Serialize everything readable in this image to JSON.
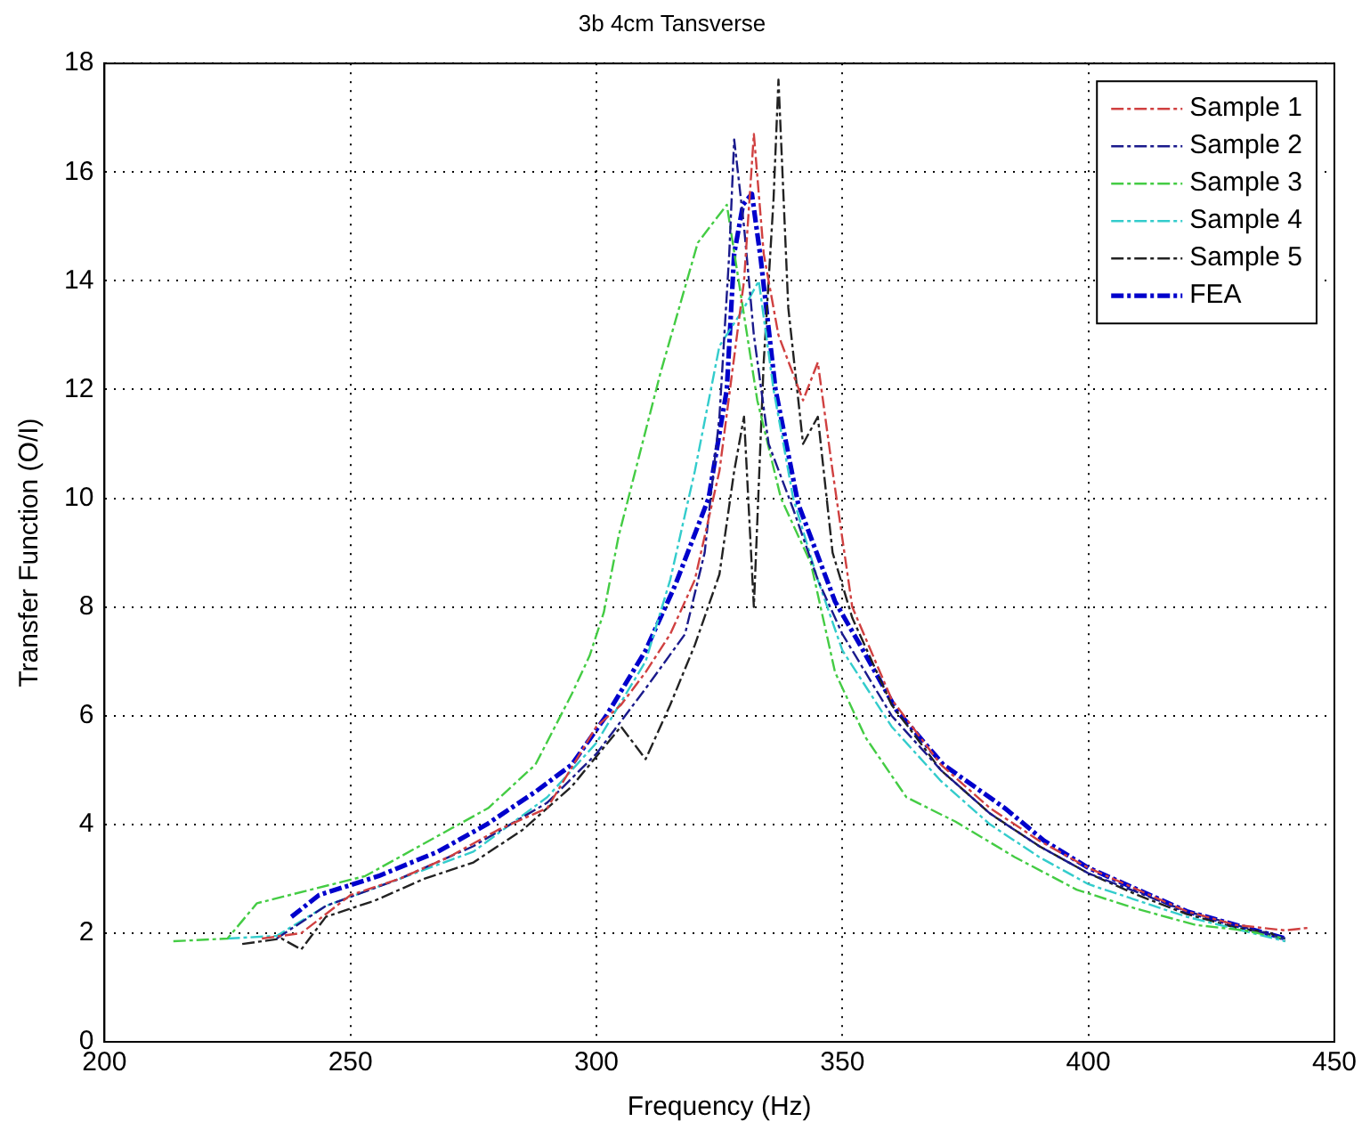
{
  "chart_data": {
    "type": "line",
    "title": "3b 4cm Tansverse",
    "xlabel": "Frequency (Hz)",
    "ylabel": "Transfer Function (O/I)",
    "xlim": [
      200,
      450
    ],
    "xticks": [
      200,
      250,
      300,
      350,
      400,
      450
    ],
    "ylim": [
      0,
      18
    ],
    "yticks": [
      0,
      2,
      4,
      6,
      8,
      10,
      12,
      14,
      16,
      18
    ],
    "grid": true,
    "legend": "top right",
    "marker": "none",
    "line_style": "dashed",
    "series": [
      {
        "name": "Sample 1",
        "color": "#d04040",
        "x": [
          232,
          240,
          250,
          260,
          270,
          280,
          290,
          300,
          305,
          310,
          315,
          320,
          325,
          330,
          332,
          334,
          337,
          342,
          345,
          348,
          352,
          360,
          370,
          380,
          390,
          400,
          410,
          420,
          430,
          440,
          445
        ],
        "values": [
          1.9,
          2.0,
          2.7,
          3.0,
          3.4,
          3.9,
          4.3,
          5.8,
          6.2,
          6.8,
          7.5,
          8.5,
          10.5,
          14.0,
          16.7,
          14.5,
          13.0,
          11.8,
          12.5,
          10.5,
          8.0,
          6.3,
          5.1,
          4.3,
          3.7,
          3.2,
          2.8,
          2.4,
          2.15,
          2.05,
          2.1
        ]
      },
      {
        "name": "Sample 2",
        "color": "#1a1a8c",
        "x": [
          235,
          245,
          260,
          275,
          290,
          300,
          310,
          318,
          322,
          325,
          327,
          328,
          330,
          332,
          335,
          340,
          345,
          350,
          360,
          370,
          380,
          390,
          400,
          420,
          440
        ],
        "values": [
          1.9,
          2.5,
          3.0,
          3.6,
          4.4,
          5.3,
          6.5,
          7.5,
          9.0,
          11.5,
          14.5,
          16.6,
          15.0,
          13.0,
          11.0,
          9.8,
          8.5,
          7.5,
          6.0,
          5.0,
          4.2,
          3.6,
          3.1,
          2.4,
          1.9
        ]
      },
      {
        "name": "Sample 3",
        "color": "#44cc44",
        "x": [
          214,
          225,
          231,
          253,
          278,
          287.6,
          295,
          298.6,
          301.5,
          304.5,
          313,
          320.6,
          326.5,
          332.7,
          337.5,
          343.6,
          348.5,
          354.7,
          363,
          373,
          385,
          397.6,
          409.7,
          421.8,
          431.7,
          440
        ],
        "values": [
          1.85,
          1.9,
          2.55,
          3.05,
          4.3,
          5.1,
          6.4,
          7.1,
          7.9,
          9.3,
          12.3,
          14.7,
          15.4,
          11.8,
          10.0,
          8.8,
          6.8,
          5.6,
          4.5,
          4.05,
          3.4,
          2.8,
          2.45,
          2.15,
          2.05,
          1.9
        ]
      },
      {
        "name": "Sample 4",
        "color": "#33cccc",
        "x": [
          225,
          235,
          245,
          260,
          275,
          290,
          300,
          310,
          315,
          320,
          325,
          330,
          333,
          336,
          340,
          345,
          350,
          360,
          370,
          380,
          390,
          400,
          420,
          440
        ],
        "values": [
          1.9,
          1.95,
          2.5,
          3.0,
          3.5,
          4.5,
          5.5,
          7.0,
          8.5,
          10.5,
          12.8,
          13.5,
          14.0,
          12.0,
          10.0,
          8.5,
          7.2,
          5.8,
          4.8,
          4.0,
          3.4,
          2.9,
          2.3,
          1.85
        ]
      },
      {
        "name": "Sample 5",
        "color": "#222222",
        "x": [
          228,
          236,
          240,
          245,
          255,
          265,
          275,
          285,
          295,
          305,
          310,
          315,
          320,
          325,
          328,
          330,
          332,
          334,
          336,
          337,
          339,
          342,
          345,
          348,
          352,
          360,
          370,
          380,
          390,
          400,
          410,
          420,
          430,
          437,
          440
        ],
        "values": [
          1.8,
          1.9,
          1.7,
          2.3,
          2.6,
          3.0,
          3.3,
          3.9,
          4.7,
          5.8,
          5.2,
          6.2,
          7.3,
          8.6,
          10.5,
          11.5,
          8.0,
          12.5,
          15.5,
          17.7,
          13.5,
          11.0,
          11.5,
          9.0,
          7.8,
          6.2,
          5.0,
          4.2,
          3.6,
          3.1,
          2.7,
          2.35,
          2.1,
          2.0,
          1.85
        ]
      },
      {
        "name": "FEA",
        "color": "#0000cc",
        "x": [
          238,
          243.6,
          255.7,
          267.8,
          277.7,
          287.6,
          295,
          302,
          310,
          316,
          322.8,
          326.5,
          328,
          329.8,
          331.6,
          333.4,
          336.4,
          341,
          348.5,
          353.6,
          361,
          370.5,
          383,
          391,
          400,
          420,
          440
        ],
        "values": [
          2.3,
          2.7,
          3.05,
          3.5,
          4.0,
          4.6,
          5.1,
          6.0,
          7.2,
          8.4,
          10.0,
          12.0,
          14.5,
          15.4,
          15.6,
          14.4,
          12.0,
          9.9,
          8.1,
          7.3,
          6.1,
          5.1,
          4.3,
          3.7,
          3.2,
          2.4,
          1.9
        ]
      }
    ]
  }
}
